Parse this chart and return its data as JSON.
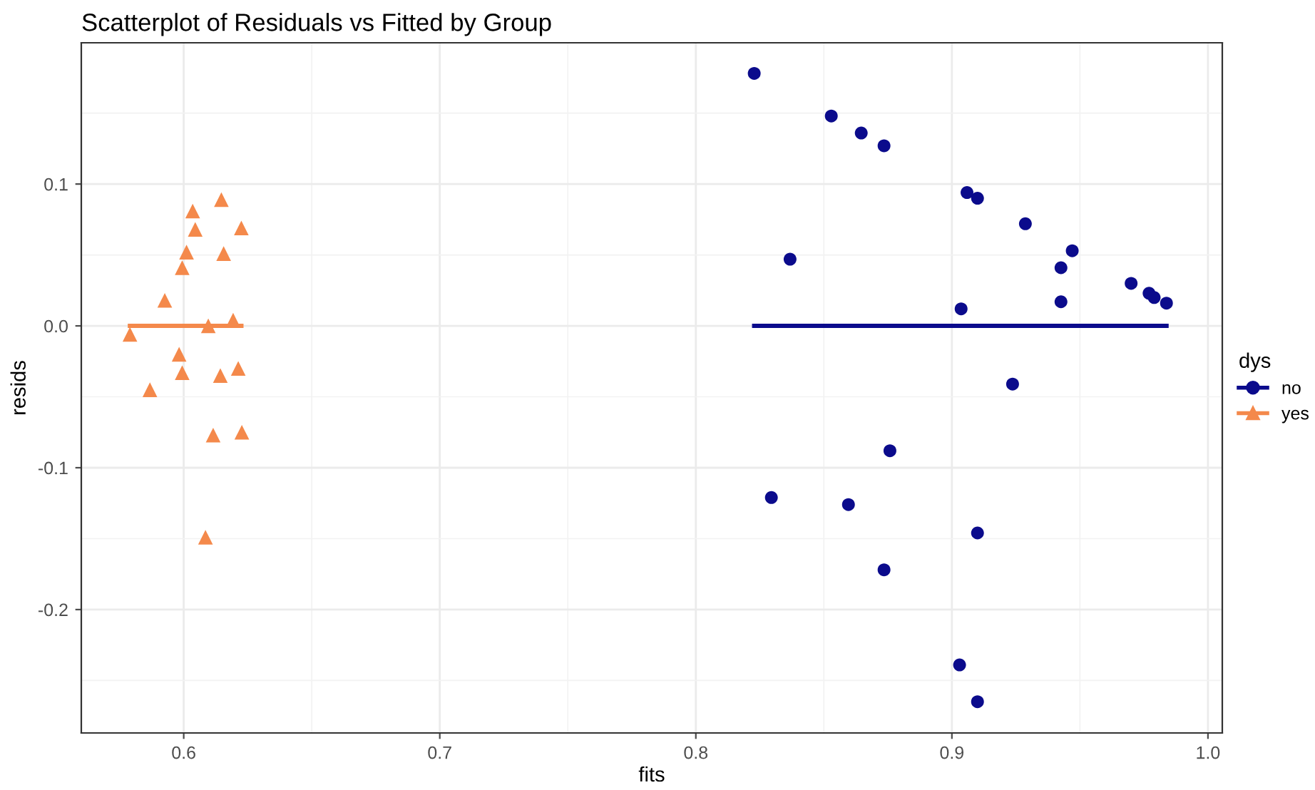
{
  "chart_data": {
    "type": "scatter",
    "title": "Scatterplot of Residuals vs Fitted by Group",
    "xlabel": "fits",
    "ylabel": "resids",
    "legend_title": "dys",
    "xlim": [
      0.56,
      1.0056
    ],
    "ylim": [
      -0.287,
      0.1996
    ],
    "xticks": [
      0.6,
      0.7,
      0.8,
      0.9,
      {
        "value": 1,
        "label": "1.0"
      }
    ],
    "yticks": [
      -0.2,
      -0.1,
      {
        "value": 0,
        "label": "0.0"
      },
      0.1
    ],
    "grid": true,
    "legend": "right",
    "series": [
      {
        "name": "no",
        "color": "#0b0b8c",
        "marker": "circle",
        "x": [
          0.8228,
          0.8529,
          0.8646,
          0.8735,
          0.9059,
          0.91,
          0.9287,
          0.947,
          0.9426,
          0.8368,
          0.9036,
          0.9426,
          0.97,
          0.977,
          0.979,
          0.9838,
          0.9237,
          0.8758,
          0.8295,
          0.8596,
          0.91,
          0.8735,
          0.903,
          0.91
        ],
        "values": [
          0.178,
          0.148,
          0.136,
          0.127,
          0.094,
          0.09,
          0.072,
          0.053,
          0.041,
          0.047,
          0.012,
          0.017,
          0.03,
          0.023,
          0.02,
          0.016,
          -0.041,
          -0.088,
          -0.121,
          -0.126,
          -0.146,
          -0.172,
          -0.239,
          -0.265
        ]
      },
      {
        "name": "yes",
        "color": "#f4894b",
        "marker": "triangle",
        "x": [
          0.6147,
          0.6035,
          0.6045,
          0.6225,
          0.6011,
          0.6156,
          0.5994,
          0.5926,
          0.579,
          0.6096,
          0.6193,
          0.5982,
          0.5994,
          0.6143,
          0.6213,
          0.5868,
          0.6115,
          0.6227,
          0.6085
        ],
        "values": [
          0.089,
          0.081,
          0.068,
          0.069,
          0.052,
          0.051,
          0.041,
          0.018,
          -0.006,
          0.0,
          0.004,
          -0.02,
          -0.033,
          -0.035,
          -0.03,
          -0.045,
          -0.077,
          -0.075,
          -0.149
        ]
      },
      {
        "color": "#0b0b8c",
        "type": "line",
        "x": [
          0.8228,
          0.9838
        ],
        "values": [
          0.0,
          0.0
        ]
      },
      {
        "color": "#f4894b",
        "type": "line",
        "x": [
          0.579,
          0.6225
        ],
        "values": [
          0.0,
          0.0
        ]
      }
    ]
  }
}
